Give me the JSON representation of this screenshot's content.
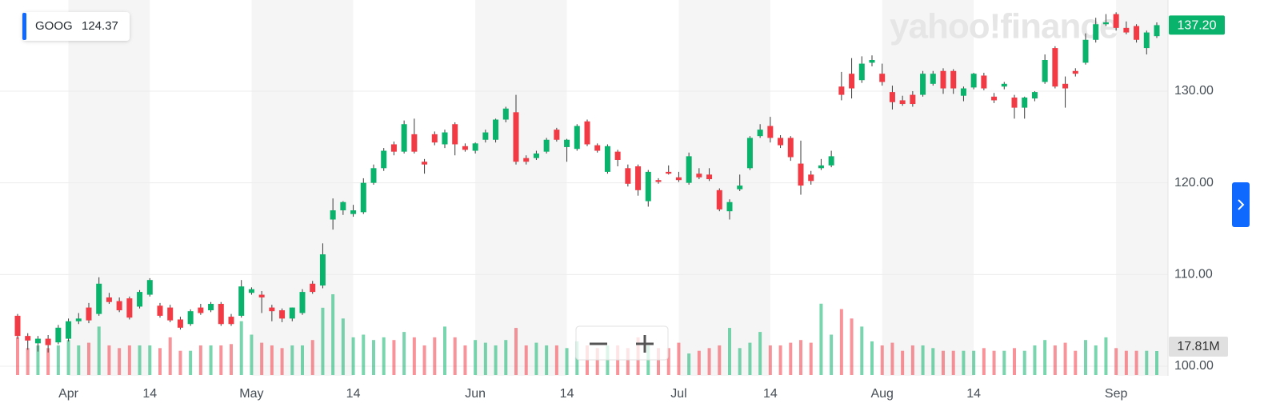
{
  "chart_data": {
    "type": "candlestick",
    "symbol": "GOOG",
    "quote": 124.37,
    "watermark": "yahoo!finance",
    "up_color": "#0ab36b",
    "down_color": "#f23a45",
    "grid": true,
    "categories": [
      null,
      null,
      null,
      null,
      null,
      "Apr",
      null,
      null,
      null,
      null,
      null,
      null,
      null,
      "14",
      null,
      null,
      null,
      null,
      null,
      null,
      null,
      null,
      null,
      "May",
      null,
      null,
      null,
      null,
      null,
      null,
      null,
      null,
      null,
      "14",
      null,
      null,
      null,
      null,
      null,
      null,
      null,
      null,
      null,
      null,
      null,
      "Jun",
      null,
      null,
      null,
      null,
      null,
      null,
      null,
      null,
      "14",
      null,
      null,
      null,
      null,
      null,
      null,
      null,
      null,
      null,
      null,
      "Jul",
      null,
      null,
      null,
      null,
      null,
      null,
      null,
      null,
      "14",
      null,
      null,
      null,
      null,
      null,
      null,
      null,
      null,
      null,
      null,
      "Aug",
      null,
      null,
      null,
      null,
      null,
      null,
      null,
      null,
      "14",
      null,
      null,
      null,
      null,
      null,
      null,
      null,
      null,
      null,
      null,
      null,
      null,
      null,
      "Sep",
      null,
      null,
      null,
      null
    ],
    "open": [
      105.5,
      103.3,
      102.5,
      103.0,
      102.6,
      103.0,
      104.9,
      106.4,
      105.7,
      107.5,
      107.1,
      107.4,
      106.5,
      107.8,
      106.6,
      106.4,
      105.1,
      104.6,
      106.4,
      106.1,
      106.8,
      105.4,
      105.5,
      108.0,
      107.8,
      106.4,
      106.1,
      105.2,
      105.8,
      109.0,
      108.8,
      116.0,
      117.0,
      116.6,
      116.8,
      120.0,
      121.6,
      124.2,
      123.4,
      125.3,
      122.3,
      125.3,
      124.2,
      126.4,
      124.0,
      123.5,
      124.7,
      124.7,
      126.9,
      127.7,
      122.7,
      122.7,
      123.4,
      125.8,
      123.9,
      123.7,
      126.7,
      124.1,
      121.2,
      123.4,
      121.6,
      121.8,
      118.0,
      120.3,
      121.2,
      120.6,
      120.0,
      121.0,
      120.9,
      119.2,
      116.9,
      119.3,
      121.6,
      125.1,
      126.2,
      124.9,
      124.9,
      122.1,
      120.9,
      121.6,
      121.9,
      130.5,
      131.9,
      131.2,
      133.1,
      131.9,
      129.9,
      129.0,
      129.6,
      129.6,
      130.8,
      132.2,
      132.2,
      129.5,
      130.4,
      131.7,
      129.4,
      130.5,
      129.3,
      128.2,
      129.2,
      131.0,
      134.7,
      130.8,
      132.2,
      133.1,
      135.6,
      137.3,
      138.4,
      136.9,
      137.1,
      134.7,
      136.0
    ],
    "high": [
      105.7,
      103.6,
      103.3,
      103.4,
      104.5,
      105.2,
      105.8,
      106.9,
      109.7,
      108.0,
      107.5,
      107.6,
      108.3,
      109.6,
      106.9,
      106.7,
      105.4,
      106.2,
      106.8,
      107.0,
      107.0,
      105.7,
      109.4,
      108.6,
      108.2,
      106.7,
      106.3,
      106.4,
      108.4,
      109.3,
      113.4,
      118.3,
      118.0,
      117.6,
      120.5,
      122.0,
      123.8,
      124.5,
      126.8,
      127.0,
      122.6,
      125.6,
      125.8,
      126.6,
      124.3,
      124.4,
      125.8,
      127.0,
      128.3,
      129.6,
      123.0,
      123.5,
      124.9,
      126.0,
      124.8,
      126.4,
      126.9,
      124.3,
      124.2,
      123.6,
      122.0,
      122.0,
      121.4,
      120.5,
      121.9,
      121.2,
      123.3,
      121.6,
      121.6,
      119.4,
      118.2,
      120.9,
      125.1,
      126.4,
      127.2,
      125.2,
      125.1,
      124.6,
      121.3,
      122.6,
      123.5,
      132.1,
      133.6,
      133.8,
      133.9,
      133.0,
      130.6,
      129.5,
      130.0,
      132.2,
      132.2,
      132.5,
      132.4,
      130.5,
      132.0,
      132.0,
      129.8,
      131.0,
      129.6,
      129.4,
      130.0,
      134.0,
      134.9,
      131.6,
      132.5,
      136.3,
      138.0,
      138.4,
      138.6,
      137.6,
      137.3,
      136.6,
      137.5
    ],
    "low": [
      103.0,
      101.8,
      101.6,
      101.5,
      102.4,
      102.7,
      104.6,
      104.7,
      105.5,
      106.8,
      105.9,
      105.1,
      106.3,
      107.6,
      105.3,
      104.8,
      104.0,
      104.4,
      105.6,
      105.9,
      104.4,
      104.4,
      105.3,
      107.8,
      105.8,
      104.9,
      104.8,
      104.9,
      105.6,
      107.9,
      108.5,
      114.9,
      116.5,
      116.3,
      116.6,
      119.8,
      121.3,
      123.0,
      123.2,
      123.2,
      121.0,
      124.1,
      123.8,
      123.0,
      123.4,
      123.2,
      124.4,
      124.4,
      126.6,
      122.0,
      122.0,
      122.5,
      123.2,
      124.5,
      122.3,
      123.5,
      124.0,
      123.3,
      121.0,
      121.8,
      119.6,
      118.6,
      117.4,
      119.9,
      120.9,
      120.1,
      119.8,
      120.4,
      120.2,
      116.9,
      116.0,
      119.1,
      121.4,
      124.9,
      124.4,
      123.8,
      122.4,
      118.7,
      119.8,
      121.4,
      121.7,
      129.0,
      129.2,
      130.9,
      132.7,
      130.6,
      128.0,
      128.4,
      128.3,
      129.4,
      130.6,
      129.7,
      129.7,
      128.9,
      130.2,
      130.1,
      128.7,
      130.2,
      127.0,
      127.0,
      128.9,
      130.8,
      130.3,
      128.2,
      131.6,
      132.9,
      135.3,
      137.1,
      136.6,
      136.2,
      135.3,
      134.0,
      135.8
    ],
    "close": [
      103.3,
      102.8,
      103.0,
      102.3,
      104.2,
      104.9,
      105.2,
      105.0,
      109.0,
      107.0,
      106.1,
      105.3,
      108.1,
      109.4,
      105.5,
      105.0,
      104.2,
      106.0,
      105.8,
      106.8,
      104.6,
      104.6,
      108.7,
      108.4,
      107.5,
      106.0,
      105.2,
      106.4,
      108.1,
      108.1,
      112.2,
      117.0,
      117.9,
      117.0,
      120.0,
      121.6,
      123.5,
      123.4,
      126.4,
      123.4,
      122.0,
      124.4,
      125.5,
      124.2,
      123.6,
      124.3,
      125.5,
      126.9,
      128.1,
      122.3,
      122.3,
      123.2,
      124.7,
      124.7,
      124.7,
      126.2,
      124.2,
      123.5,
      124.0,
      122.5,
      119.9,
      119.2,
      121.2,
      120.1,
      121.0,
      120.3,
      122.9,
      120.6,
      120.4,
      117.1,
      117.9,
      119.7,
      124.9,
      125.8,
      124.9,
      124.1,
      122.8,
      119.7,
      120.2,
      121.9,
      122.9,
      129.6,
      130.3,
      133.0,
      133.4,
      131.0,
      128.8,
      128.6,
      128.6,
      131.9,
      131.9,
      130.3,
      130.3,
      130.3,
      131.9,
      130.3,
      129.0,
      130.8,
      128.2,
      129.3,
      129.9,
      133.4,
      130.5,
      130.3,
      131.9,
      135.6,
      137.3,
      137.5,
      136.9,
      136.4,
      135.6,
      136.4,
      137.2
    ],
    "volume": [
      28,
      20,
      22,
      20,
      22,
      26,
      22,
      24,
      36,
      22,
      20,
      22,
      22,
      22,
      20,
      28,
      18,
      18,
      22,
      22,
      22,
      23,
      40,
      30,
      24,
      22,
      20,
      22,
      22,
      26,
      50,
      60,
      42,
      28,
      30,
      26,
      28,
      26,
      32,
      28,
      22,
      28,
      36,
      28,
      22,
      26,
      24,
      22,
      26,
      35,
      22,
      24,
      22,
      22,
      20,
      25,
      22,
      20,
      22,
      22,
      20,
      28,
      22,
      20,
      20,
      24,
      16,
      18,
      20,
      22,
      35,
      20,
      24,
      32,
      22,
      22,
      24,
      26,
      24,
      53,
      30,
      49,
      42,
      36,
      25,
      22,
      24,
      18,
      22,
      22,
      20,
      18,
      18,
      18,
      18,
      20,
      18,
      18,
      20,
      18,
      22,
      26,
      22,
      24,
      18,
      26,
      22,
      28,
      20,
      18,
      18,
      18,
      17.81
    ],
    "ylim": [
      98.08,
      139.94
    ],
    "yticks": [
      {
        "value": 100,
        "label": "100.00"
      },
      {
        "value": 110,
        "label": "110.00"
      },
      {
        "value": 120,
        "label": "120.00"
      },
      {
        "value": 130,
        "label": "130.00"
      }
    ],
    "volume_lim": [
      0,
      60
    ],
    "price_marker": {
      "value": 137.2,
      "label": "137.20"
    },
    "volume_marker": {
      "value": 17.81,
      "label": "17.81M"
    }
  }
}
